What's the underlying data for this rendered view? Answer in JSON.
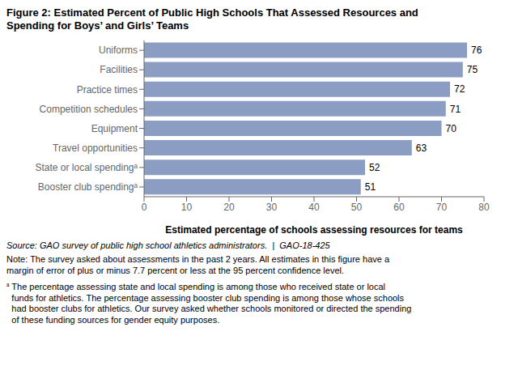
{
  "chart_data": {
    "type": "bar",
    "orientation": "horizontal",
    "title": "Figure 2: Estimated Percent of Public High Schools That Assessed Resources and\nSpending for Boys’ and Girls’ Teams",
    "categories": [
      "Uniforms",
      "Facilities",
      "Practice times",
      "Competition schedules",
      "Equipment",
      "Travel opportunities",
      "State or local spendingᵃ",
      "Booster club spendingᵃ"
    ],
    "values": [
      76,
      75,
      72,
      71,
      70,
      63,
      52,
      51
    ],
    "color": "#8B9DC3",
    "xlabel": "Estimated percentage of schools assessing resources for teams",
    "xlim": [
      0,
      80
    ],
    "xticks": [
      0,
      10,
      20,
      30,
      40,
      50,
      60,
      70,
      80
    ],
    "data_labels": true,
    "grid": false,
    "annotations": [
      "Source: GAO survey of public high school athletics administrators.  |  GAO-18-425",
      "Note: The survey asked about assessments in the past 2 years. All estimates in this figure have a\nmargin of error of plus or minus 7.7 percent or less at the 95 percent confidence level.",
      "ᵃ",
      "The percentage assessing state and local spending is among those who received state or local\nfunds for athletics. The percentage assessing booster club spending is among those whose schools\nhad booster clubs for athletics. Our survey asked whether schools monitored or directed the spending\nof these funding sources for gender equity purposes."
    ]
  }
}
